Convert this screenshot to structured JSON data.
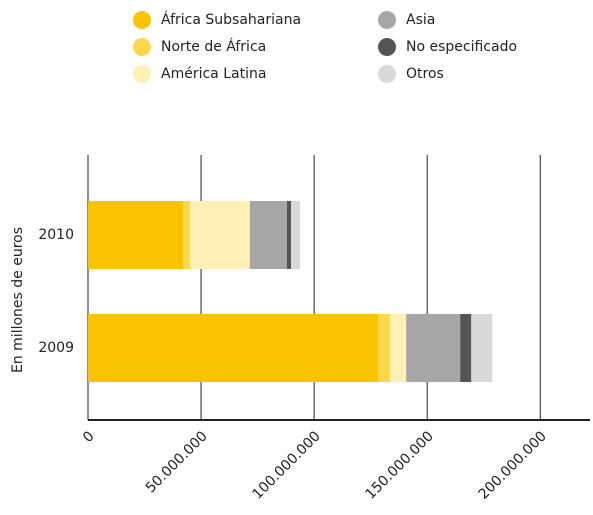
{
  "chart_data": {
    "type": "stacked_barh",
    "y_axis_label": "En millones de euros",
    "categories": [
      "2010",
      "2009"
    ],
    "series": [
      {
        "name": "África Subsahariana",
        "color": "#fbc400",
        "values": [
          42000000,
          128300000
        ]
      },
      {
        "name": "Norte de África",
        "color": "#fdd84a",
        "values": [
          3100000,
          5300000
        ]
      },
      {
        "name": "América Latina",
        "color": "#fff0b5",
        "values": [
          26500000,
          7100000
        ]
      },
      {
        "name": "Asia",
        "color": "#a6a6a6",
        "values": [
          16400000,
          23900000
        ]
      },
      {
        "name": "No especificado",
        "color": "#555555",
        "values": [
          1800000,
          4900000
        ]
      },
      {
        "name": "Otros",
        "color": "#d9d9d9",
        "values": [
          4000000,
          9300000
        ]
      }
    ],
    "xlim": [
      0,
      222000000
    ],
    "xticks": [
      0,
      {
        "value": 50000000,
        "label": "50.000.000"
      },
      {
        "value": 100000000,
        "label": "100.000.000"
      },
      {
        "value": 150000000,
        "label": "150.000.000"
      },
      {
        "value": 200000000,
        "label": "200.000.000"
      }
    ],
    "grid": true
  }
}
